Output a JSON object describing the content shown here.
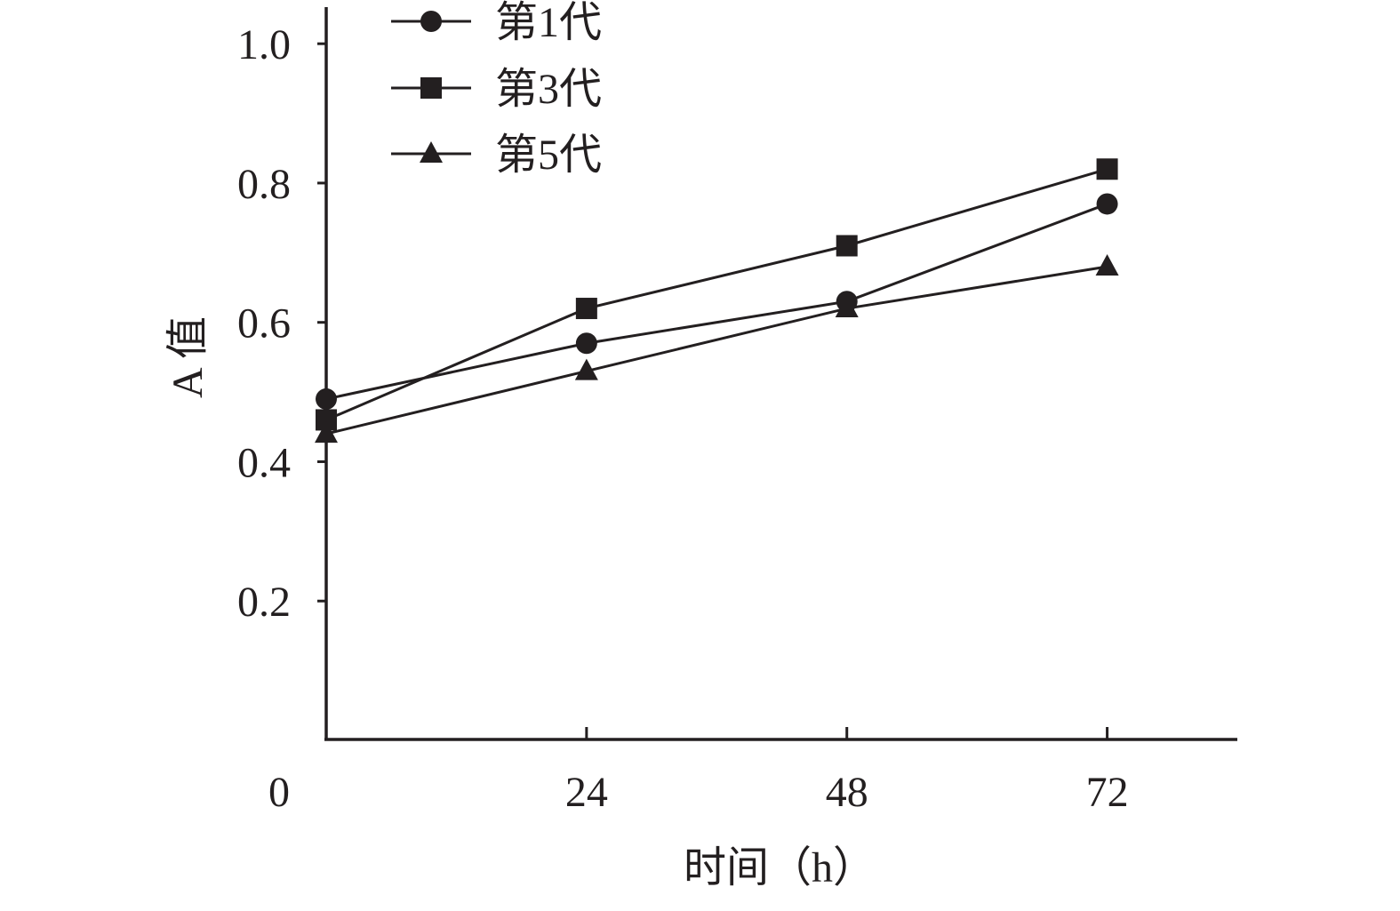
{
  "chart_data": {
    "type": "line",
    "xlabel": "时间（h）",
    "ylabel": "A 值",
    "x": [
      0,
      24,
      48,
      72
    ],
    "x_tick_labels": [
      "0",
      "24",
      "48",
      "72"
    ],
    "y_ticks": [
      0.2,
      0.4,
      0.6,
      0.8,
      1.0
    ],
    "y_tick_labels": [
      "0.2",
      "0.4",
      "0.6",
      "0.8",
      "1.0"
    ],
    "xlim": [
      0,
      84
    ],
    "ylim": [
      0,
      1.05
    ],
    "grid": false,
    "legend_position": "top-left",
    "line_color": "#231f20",
    "series": [
      {
        "name": "第1代",
        "marker": "circle",
        "values": [
          0.49,
          0.57,
          0.63,
          0.77
        ]
      },
      {
        "name": "第3代",
        "marker": "square",
        "values": [
          0.46,
          0.62,
          0.71,
          0.82
        ]
      },
      {
        "name": "第5代",
        "marker": "triangle",
        "values": [
          0.44,
          0.53,
          0.62,
          0.68
        ]
      }
    ]
  }
}
